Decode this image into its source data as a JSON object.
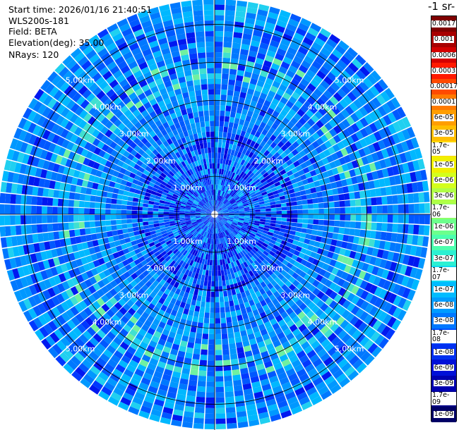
{
  "header": {
    "start_time": "Start time: 2026/01/16 21:40:51",
    "instrument": "WLS200s-181",
    "field": "Field: BETA",
    "elevation": "Elevation(deg): 35.00",
    "nrays": "NRays: 120"
  },
  "colorbar": {
    "title": "-1 sr-",
    "labels": [
      "0.0017",
      "0.001",
      "0.0006",
      "0.0003",
      "0.00017",
      "0.0001",
      "6e-05",
      "3e-05",
      "1.7e-05",
      "1e-05",
      "6e-06",
      "3e-06",
      "1.7e-06",
      "1e-06",
      "6e-07",
      "3e-07",
      "1.7e-07",
      "1e-07",
      "6e-08",
      "3e-08",
      "1.7e-08",
      "1e-08",
      "6e-09",
      "3e-09",
      "1.7e-09",
      "1e-09"
    ],
    "colors": [
      "#7f0000",
      "#a80000",
      "#d40000",
      "#ff1a00",
      "#ff4a00",
      "#ff7a00",
      "#ff9e00",
      "#ffbe00",
      "#ffd800",
      "#f0f000",
      "#d4ff1c",
      "#b0ff46",
      "#8cff6a",
      "#6cff8c",
      "#4cffae",
      "#2cf0d2",
      "#10d8f0",
      "#00bcff",
      "#009cff",
      "#0078ff",
      "#0050ff",
      "#0030f0",
      "#0010d8",
      "#0000b0",
      "#000088",
      "#000066"
    ],
    "light_text_from_index": 18
  },
  "chart_data": {
    "type": "polar-ppi",
    "n_rays": 120,
    "range_rings_km": [
      1.0,
      2.0,
      3.0,
      4.0,
      5.0
    ],
    "ring_labels": [
      "1.00km",
      "2.00km",
      "3.00km",
      "4.00km",
      "5.00km"
    ],
    "max_range_km": 5.66,
    "elevation_deg": 35.0,
    "field": "BETA",
    "color_scale": "log",
    "value_range": [
      1e-09,
      0.0017
    ]
  }
}
